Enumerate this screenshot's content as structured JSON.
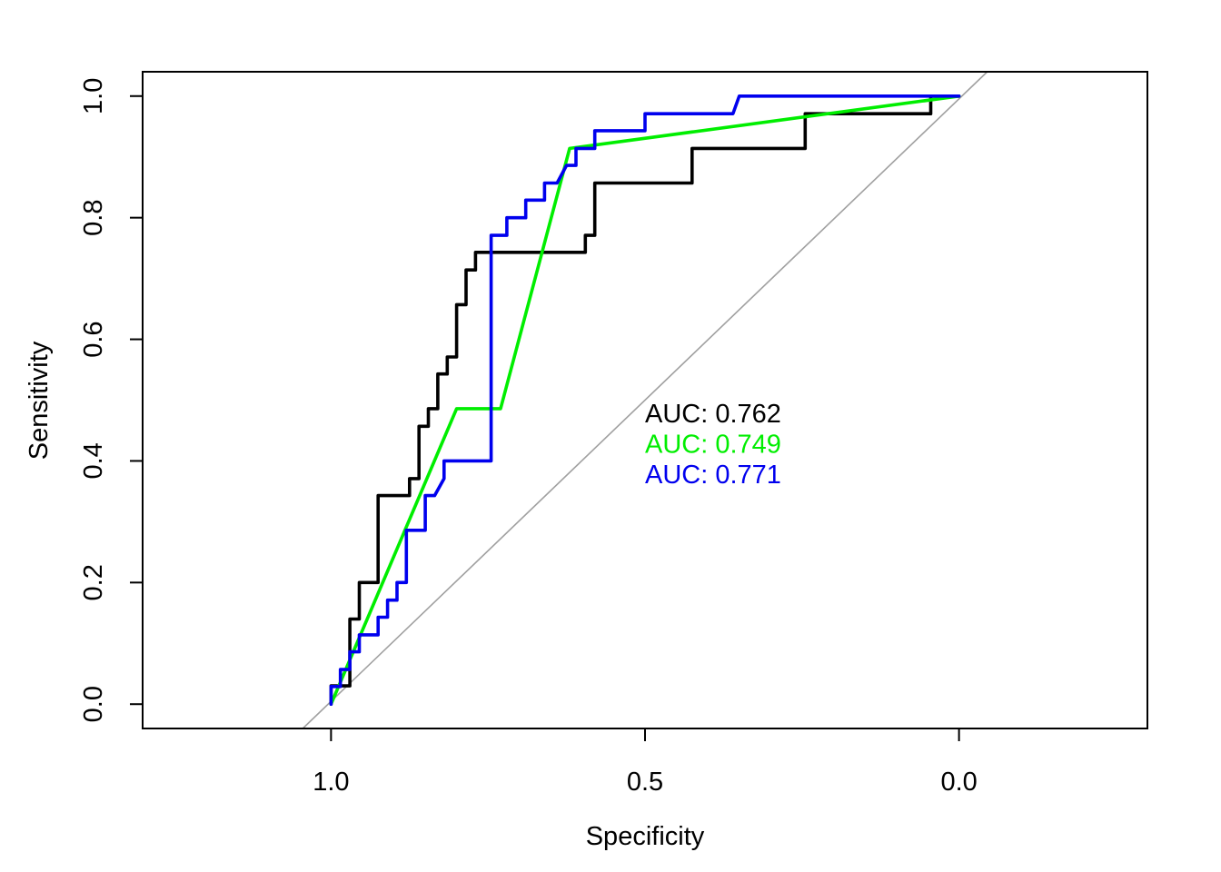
{
  "chart_data": {
    "type": "line",
    "title": "",
    "xlabel": "Specificity",
    "ylabel": "Sensitivity",
    "x_reversed": true,
    "xlim": [
      1.3,
      -0.3
    ],
    "ylim": [
      -0.04,
      1.04
    ],
    "x_ticks": [
      1.0,
      0.5,
      0.0
    ],
    "x_tick_labels": [
      "1.0",
      "0.5",
      "0.0"
    ],
    "y_ticks": [
      0.0,
      0.2,
      0.4,
      0.6,
      0.8,
      1.0
    ],
    "y_tick_labels": [
      "0.0",
      "0.2",
      "0.4",
      "0.6",
      "0.8",
      "1.0"
    ],
    "grid": false,
    "diagonal": {
      "color": "#a0a0a0",
      "points": [
        [
          1.045,
          -0.04
        ],
        [
          -0.045,
          1.04
        ]
      ]
    },
    "series": [
      {
        "color": "#000000",
        "auc_text": "AUC: 0.762",
        "points": [
          [
            1.0,
            0.0
          ],
          [
            1.0,
            0.03
          ],
          [
            0.97,
            0.03
          ],
          [
            0.97,
            0.14
          ],
          [
            0.955,
            0.14
          ],
          [
            0.955,
            0.2
          ],
          [
            0.925,
            0.2
          ],
          [
            0.925,
            0.343
          ],
          [
            0.875,
            0.343
          ],
          [
            0.875,
            0.371
          ],
          [
            0.86,
            0.371
          ],
          [
            0.86,
            0.457
          ],
          [
            0.845,
            0.457
          ],
          [
            0.845,
            0.486
          ],
          [
            0.83,
            0.486
          ],
          [
            0.83,
            0.543
          ],
          [
            0.815,
            0.543
          ],
          [
            0.815,
            0.571
          ],
          [
            0.8,
            0.571
          ],
          [
            0.8,
            0.657
          ],
          [
            0.785,
            0.657
          ],
          [
            0.785,
            0.714
          ],
          [
            0.77,
            0.714
          ],
          [
            0.77,
            0.743
          ],
          [
            0.595,
            0.743
          ],
          [
            0.595,
            0.771
          ],
          [
            0.58,
            0.771
          ],
          [
            0.58,
            0.857
          ],
          [
            0.425,
            0.857
          ],
          [
            0.425,
            0.914
          ],
          [
            0.245,
            0.914
          ],
          [
            0.245,
            0.971
          ],
          [
            0.045,
            0.971
          ],
          [
            0.045,
            1.0
          ],
          [
            0.0,
            1.0
          ]
        ]
      },
      {
        "color": "#00ee00",
        "auc_text": "AUC: 0.749",
        "points": [
          [
            1.0,
            0.0
          ],
          [
            0.8,
            0.486
          ],
          [
            0.73,
            0.486
          ],
          [
            0.62,
            0.914
          ],
          [
            0.0,
            1.0
          ]
        ]
      },
      {
        "color": "#0000ee",
        "auc_text": "AUC: 0.771",
        "points": [
          [
            1.0,
            0.0
          ],
          [
            1.0,
            0.029
          ],
          [
            0.985,
            0.029
          ],
          [
            0.985,
            0.057
          ],
          [
            0.97,
            0.057
          ],
          [
            0.97,
            0.086
          ],
          [
            0.955,
            0.086
          ],
          [
            0.955,
            0.114
          ],
          [
            0.925,
            0.114
          ],
          [
            0.925,
            0.143
          ],
          [
            0.91,
            0.143
          ],
          [
            0.91,
            0.171
          ],
          [
            0.895,
            0.171
          ],
          [
            0.895,
            0.2
          ],
          [
            0.88,
            0.2
          ],
          [
            0.88,
            0.286
          ],
          [
            0.85,
            0.286
          ],
          [
            0.85,
            0.343
          ],
          [
            0.835,
            0.343
          ],
          [
            0.82,
            0.371
          ],
          [
            0.82,
            0.4
          ],
          [
            0.745,
            0.4
          ],
          [
            0.745,
            0.771
          ],
          [
            0.72,
            0.771
          ],
          [
            0.72,
            0.8
          ],
          [
            0.69,
            0.8
          ],
          [
            0.69,
            0.829
          ],
          [
            0.66,
            0.829
          ],
          [
            0.66,
            0.857
          ],
          [
            0.64,
            0.857
          ],
          [
            0.625,
            0.886
          ],
          [
            0.61,
            0.886
          ],
          [
            0.61,
            0.914
          ],
          [
            0.58,
            0.914
          ],
          [
            0.58,
            0.943
          ],
          [
            0.5,
            0.943
          ],
          [
            0.5,
            0.971
          ],
          [
            0.36,
            0.971
          ],
          [
            0.35,
            1.0
          ],
          [
            0.0,
            1.0
          ]
        ]
      }
    ]
  }
}
